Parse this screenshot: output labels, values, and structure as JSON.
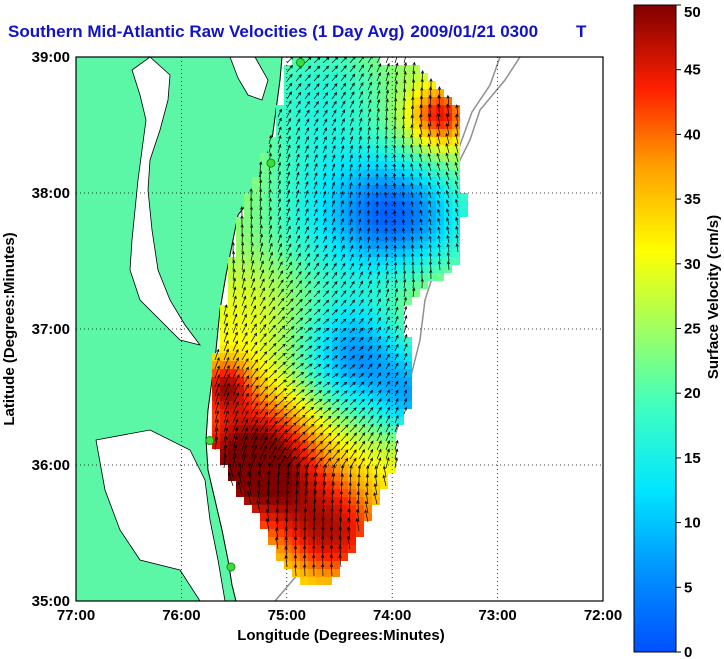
{
  "title": {
    "name": "Southern Mid-Atlantic Raw Velocities (1 Day Avg)",
    "datetime": "2009/01/21 0300",
    "suffix": "T"
  },
  "axes": {
    "xlabel": "Longitude (Degrees:Minutes)",
    "ylabel": "Latitude (Degrees:Minutes)",
    "xticks": [
      "77:00",
      "76:00",
      "75:00",
      "74:00",
      "73:00",
      "72:00"
    ],
    "yticks": [
      "39:00",
      "38:00",
      "37:00",
      "36:00",
      "35:00"
    ],
    "lon_range": [
      -77,
      -72
    ],
    "lat_range": [
      35,
      39
    ],
    "grid": "dotted"
  },
  "colorbar": {
    "label": "Surface Velocity (cm/s)",
    "ticks": [
      "50",
      "45",
      "40",
      "35",
      "30",
      "25",
      "20",
      "15",
      "10",
      "5",
      "0"
    ],
    "range": [
      0,
      50
    ],
    "colormap": "jet"
  },
  "colors": {
    "land": "#5cf7a6",
    "title": "#1212c8",
    "station": "#3ddc3d"
  },
  "stations": [
    {
      "lon": -74.87,
      "lat": 38.96
    },
    {
      "lon": -75.15,
      "lat": 38.22
    },
    {
      "lon": -75.73,
      "lat": 36.18
    },
    {
      "lon": -75.53,
      "lat": 35.25
    }
  ]
}
